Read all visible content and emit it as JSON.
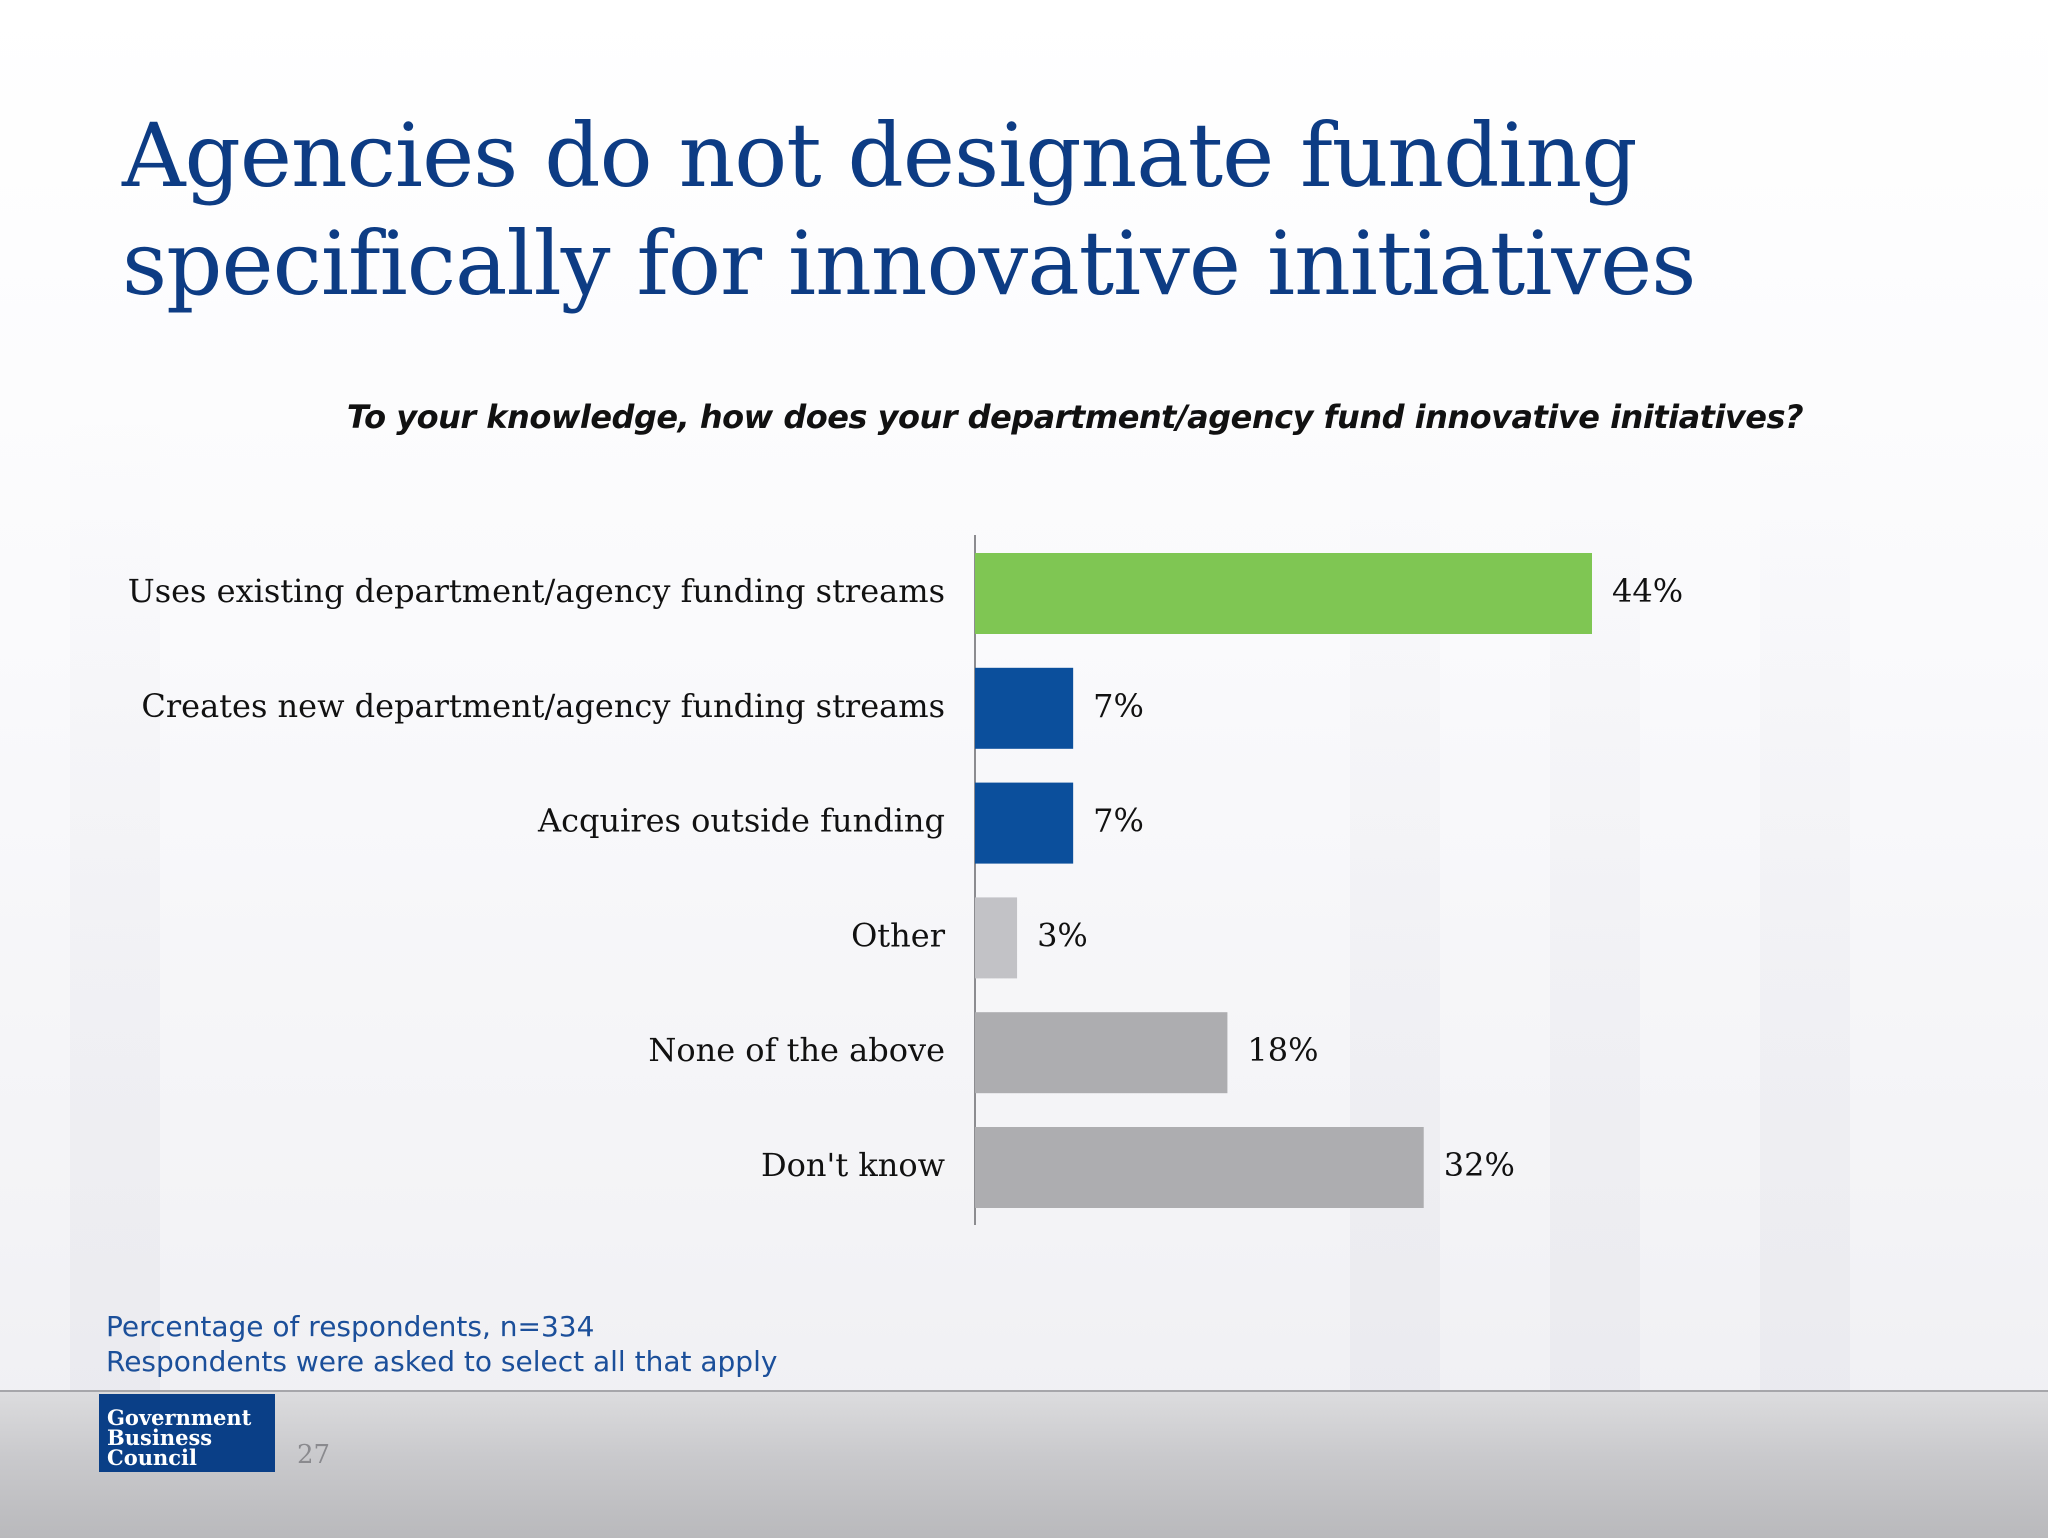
{
  "slide": {
    "title": "Agencies do not designate funding specifically for innovative initiatives",
    "question": "To your knowledge, how does your department/agency fund innovative initiatives?",
    "notes": [
      "Percentage of respondents, n=334",
      "Respondents were asked to select all that apply"
    ],
    "logo_lines": [
      "Government",
      "Business",
      "Council"
    ],
    "page_number": "27"
  },
  "chart_data": {
    "type": "bar",
    "orientation": "horizontal",
    "title": "To your knowledge, how does your department/agency fund innovative initiatives?",
    "categories": [
      "Uses existing department/agency funding streams",
      "Creates new department/agency funding streams",
      "Acquires outside funding",
      "Other",
      "None of the above",
      "Don't know"
    ],
    "values": [
      44,
      7,
      7,
      3,
      18,
      32
    ],
    "value_labels": [
      "44%",
      "7%",
      "7%",
      "3%",
      "18%",
      "32%"
    ],
    "colors": [
      "#7fc653",
      "#0b4f9c",
      "#0b4f9c",
      "#c2c2c6",
      "#adadb0",
      "#adadb0"
    ],
    "unit": "%",
    "xlim": [
      0,
      44
    ],
    "grid": false,
    "legend": "none"
  }
}
